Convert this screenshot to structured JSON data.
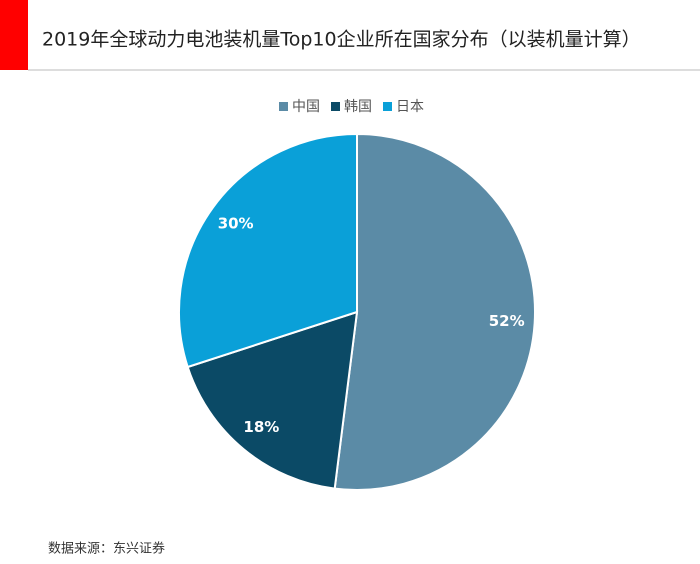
{
  "chart_data": {
    "type": "pie",
    "title": "2019年全球动力电池装机量Top10企业所在国家分布（以装机量计算）",
    "categories": [
      "中国",
      "韩国",
      "日本"
    ],
    "values": [
      52,
      18,
      30
    ],
    "value_labels": [
      "52%",
      "18%",
      "30%"
    ],
    "colors": [
      "#5b8ba6",
      "#0b4a66",
      "#0aa0d8"
    ],
    "legend": "top"
  },
  "source": "数据来源：东兴证券"
}
